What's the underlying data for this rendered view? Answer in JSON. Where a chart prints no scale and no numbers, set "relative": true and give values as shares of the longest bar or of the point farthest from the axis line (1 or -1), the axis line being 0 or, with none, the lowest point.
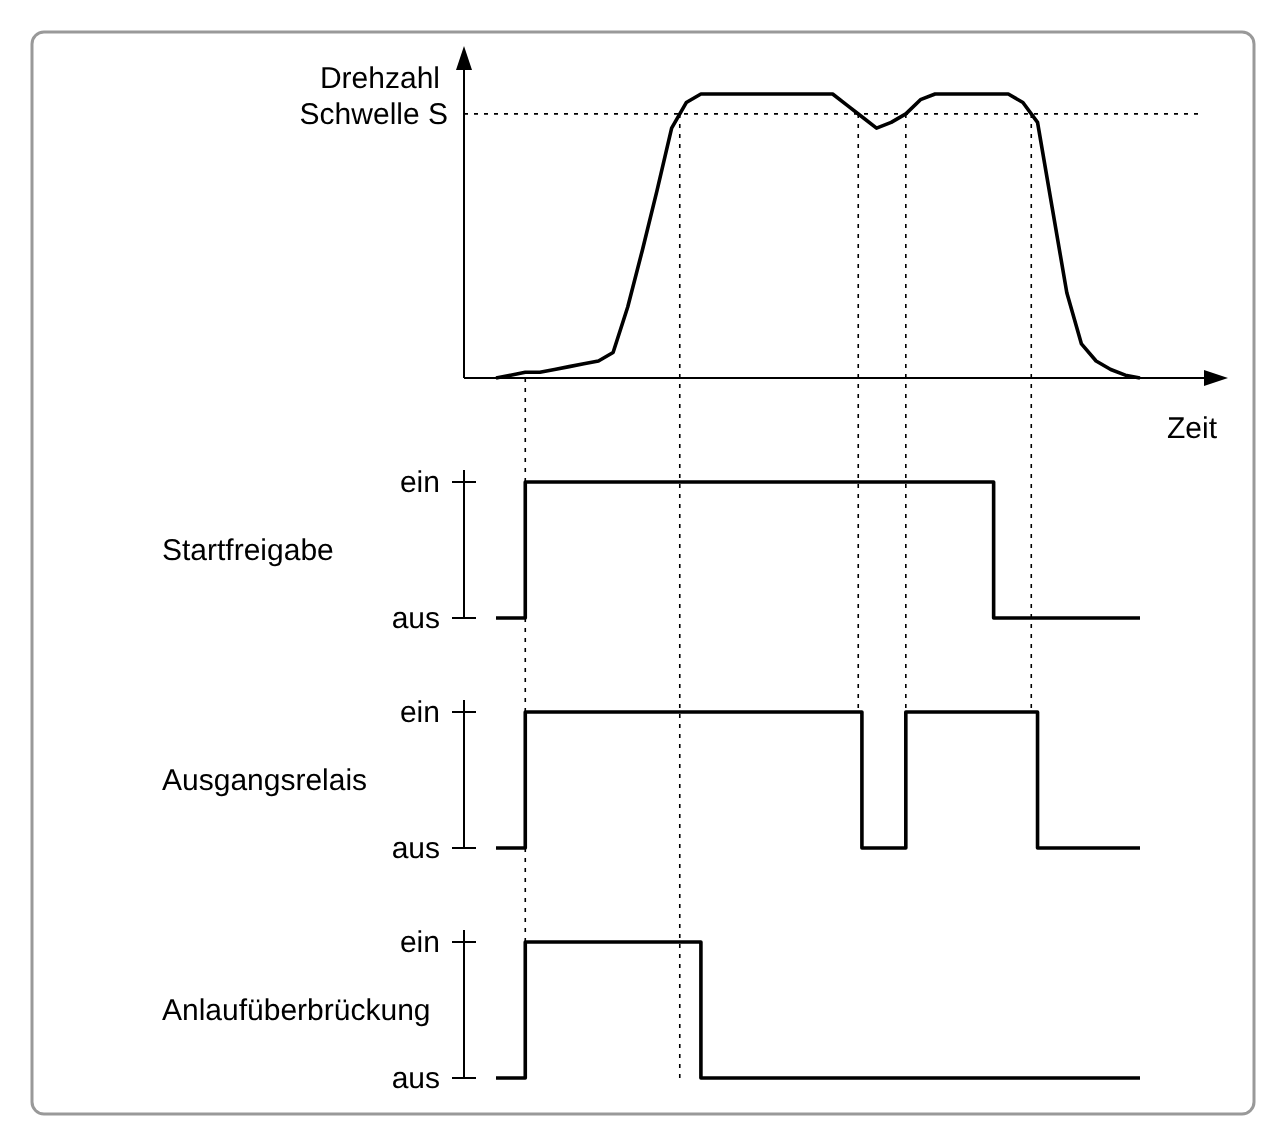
{
  "chart_data": [
    {
      "type": "line",
      "relative": true,
      "ylabel": "Drehzahl",
      "xlabel": "Zeit",
      "color": "#000000",
      "categories": [
        null,
        null,
        null,
        null,
        null,
        null,
        null,
        null,
        null,
        null,
        null,
        null,
        null,
        null,
        null,
        null,
        null,
        null,
        null,
        null,
        null,
        null,
        null,
        null,
        null,
        null,
        null,
        null,
        null,
        null,
        null,
        null,
        null,
        null,
        null,
        null,
        null,
        null,
        null,
        null,
        null,
        null,
        null,
        null,
        null
      ],
      "values": [
        0,
        0.01,
        0.02,
        0.02,
        0.03,
        0.04,
        0.05,
        0.06,
        0.09,
        0.25,
        0.45,
        0.66,
        0.88,
        0.97,
        1,
        1,
        1,
        1,
        1,
        1,
        1,
        1,
        1,
        1,
        0.96,
        0.92,
        0.88,
        0.9,
        0.93,
        0.98,
        1,
        1,
        1,
        1,
        1,
        1,
        0.97,
        0.9,
        0.6,
        0.3,
        0.12,
        0.06,
        0.03,
        0.01,
        0
      ],
      "ref_lines": [
        {
          "axis": "y",
          "value": 0.93,
          "label": "Schwelle S",
          "line_style": "dotted"
        }
      ]
    },
    {
      "type": "step",
      "ylabel": "Startfreigabe",
      "color": "#000000",
      "relative": true,
      "annotations": [
        "ein",
        "aus"
      ],
      "categories": [
        null,
        null,
        null,
        null,
        null,
        null,
        null,
        null,
        null,
        null,
        null,
        null,
        null,
        null,
        null,
        null,
        null,
        null,
        null,
        null,
        null,
        null,
        null,
        null,
        null,
        null,
        null,
        null,
        null,
        null,
        null,
        null,
        null,
        null,
        null,
        null,
        null,
        null,
        null,
        null,
        null,
        null,
        null,
        null,
        null
      ],
      "values": [
        0,
        0,
        1,
        1,
        1,
        1,
        1,
        1,
        1,
        1,
        1,
        1,
        1,
        1,
        1,
        1,
        1,
        1,
        1,
        1,
        1,
        1,
        1,
        1,
        1,
        1,
        1,
        1,
        1,
        1,
        1,
        1,
        1,
        1,
        0,
        0,
        0,
        0,
        0,
        0,
        0,
        0,
        0,
        0,
        0
      ]
    },
    {
      "type": "step",
      "ylabel": "Ausgangsrelais",
      "color": "#000000",
      "relative": true,
      "annotations": [
        "ein",
        "aus"
      ],
      "categories": [
        null,
        null,
        null,
        null,
        null,
        null,
        null,
        null,
        null,
        null,
        null,
        null,
        null,
        null,
        null,
        null,
        null,
        null,
        null,
        null,
        null,
        null,
        null,
        null,
        null,
        null,
        null,
        null,
        null,
        null,
        null,
        null,
        null,
        null,
        null,
        null,
        null,
        null,
        null,
        null,
        null,
        null,
        null,
        null,
        null
      ],
      "values": [
        0,
        0,
        1,
        1,
        1,
        1,
        1,
        1,
        1,
        1,
        1,
        1,
        1,
        1,
        1,
        1,
        1,
        1,
        1,
        1,
        1,
        1,
        1,
        1,
        1,
        0,
        0,
        0,
        1,
        1,
        1,
        1,
        1,
        1,
        1,
        1,
        1,
        0,
        0,
        0,
        0,
        0,
        0,
        0,
        0
      ]
    },
    {
      "type": "step",
      "ylabel": "Anlaufüberbrückung",
      "color": "#000000",
      "relative": true,
      "annotations": [
        "ein",
        "aus"
      ],
      "categories": [
        null,
        null,
        null,
        null,
        null,
        null,
        null,
        null,
        null,
        null,
        null,
        null,
        null,
        null,
        null,
        null,
        null,
        null,
        null,
        null,
        null,
        null,
        null,
        null,
        null,
        null,
        null,
        null,
        null,
        null,
        null,
        null,
        null,
        null,
        null,
        null,
        null,
        null,
        null,
        null,
        null,
        null,
        null,
        null,
        null
      ],
      "values": [
        0,
        0,
        1,
        1,
        1,
        1,
        1,
        1,
        1,
        1,
        1,
        1,
        1,
        1,
        0,
        0,
        0,
        0,
        0,
        0,
        0,
        0,
        0,
        0,
        0,
        0,
        0,
        0,
        0,
        0,
        0,
        0,
        0,
        0,
        0,
        0,
        0,
        0,
        0,
        0,
        0,
        0,
        0,
        0,
        0
      ]
    }
  ]
}
